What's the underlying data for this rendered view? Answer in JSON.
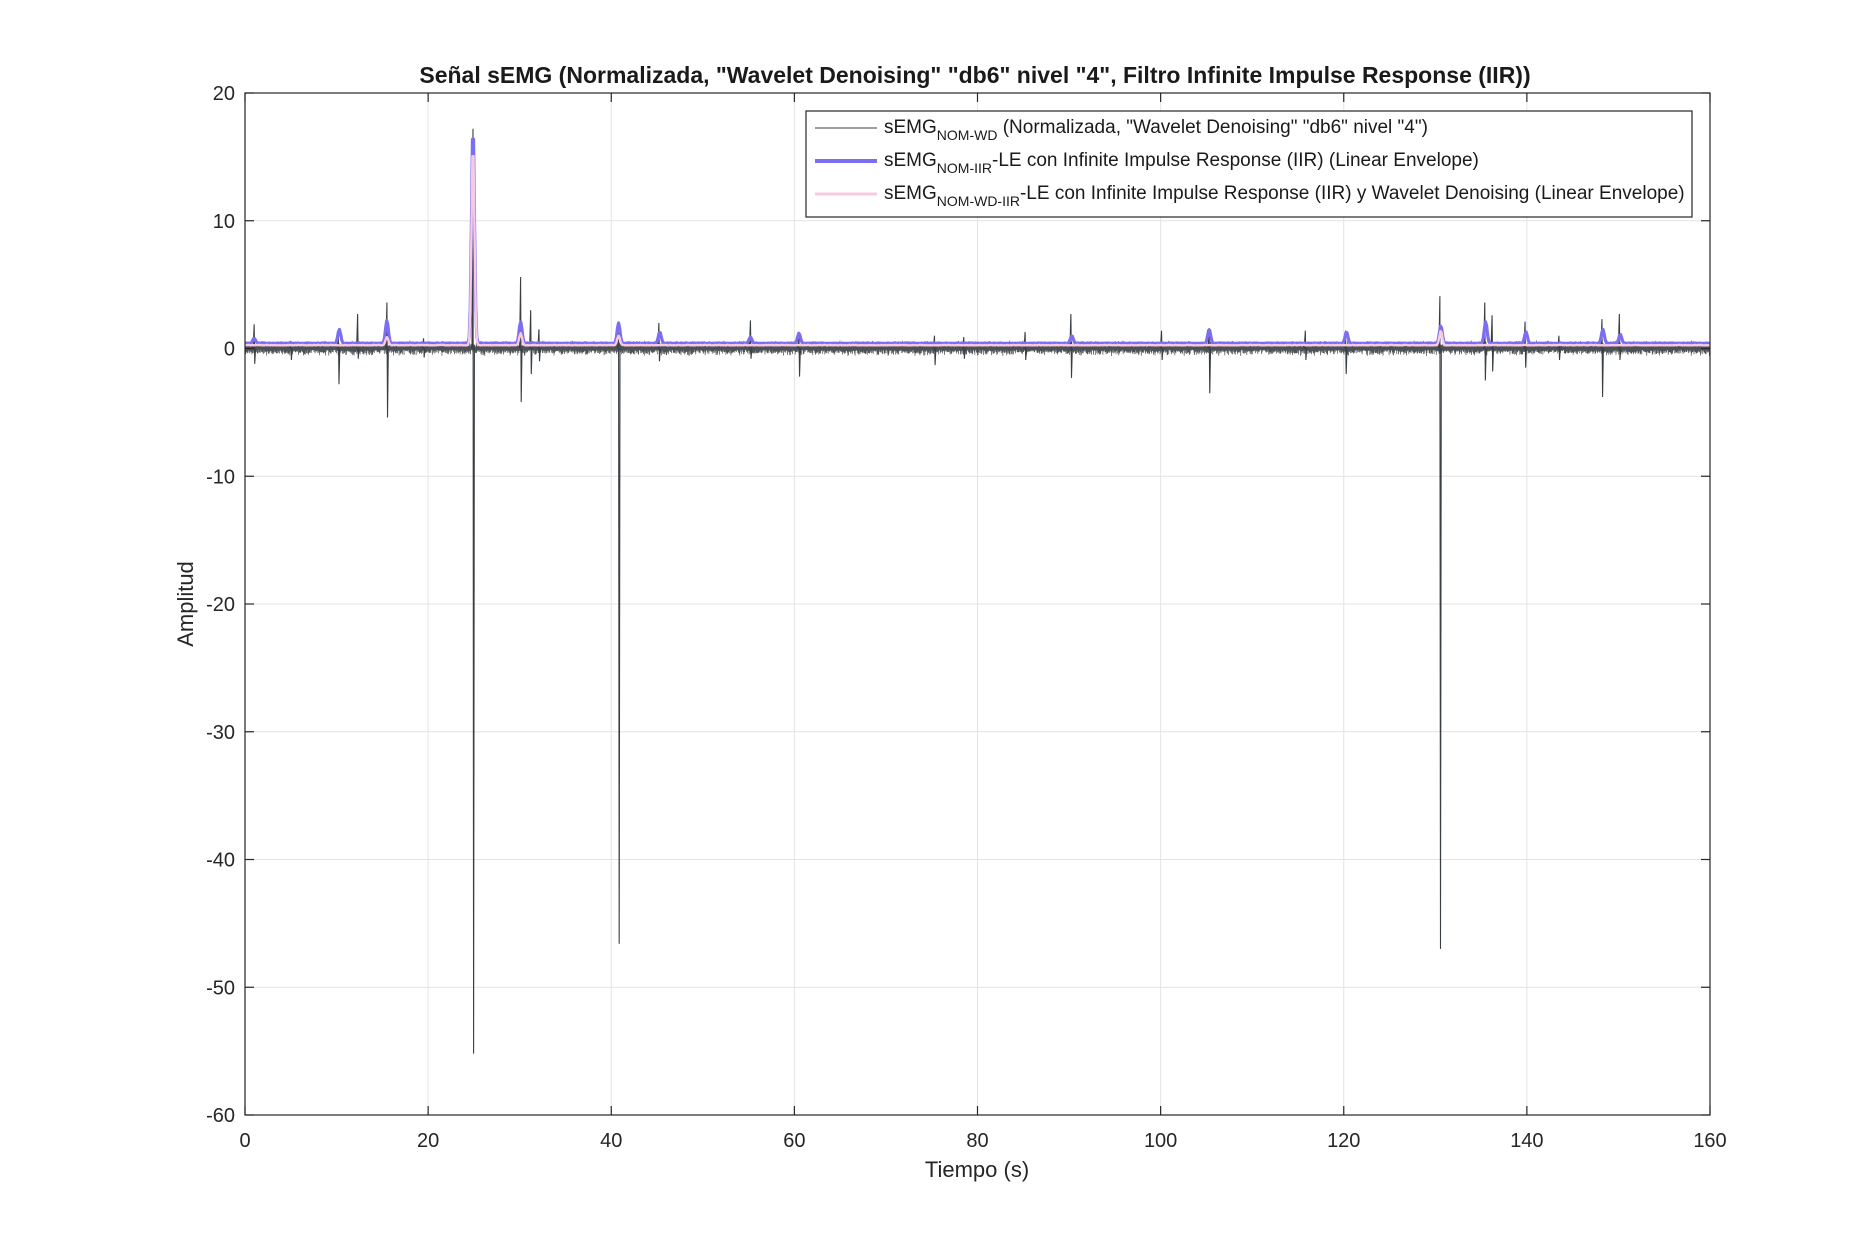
{
  "chart_data": {
    "type": "line",
    "title": "Señal sEMG (Normalizada, \"Wavelet Denoising\" \"db6\" nivel \"4\", Filtro Infinite Impulse Response (IIR))",
    "xlabel": "Tiempo (s)",
    "ylabel": "Amplitud",
    "xlim": [
      0,
      160
    ],
    "ylim": [
      -60,
      20
    ],
    "xticks": [
      0,
      20,
      40,
      60,
      80,
      100,
      120,
      140,
      160
    ],
    "xtick_labels": [
      "0",
      "20",
      "40",
      "60",
      "80",
      "100",
      "120",
      "140",
      "160"
    ],
    "yticks": [
      20,
      10,
      0,
      -10,
      -20,
      -30,
      -40,
      -50,
      -60
    ],
    "ytick_labels": [
      "20",
      "10",
      "0",
      "-10",
      "-20",
      "-30",
      "-40",
      "-50",
      "-60"
    ],
    "grid": true,
    "legend_position": "top-right",
    "colors": {
      "wd": "#3a3f44",
      "iir": "#7b6ef0",
      "wd_iir": "#f7c9e2",
      "grid": "#e4e4e4",
      "axis": "#262626"
    },
    "series": [
      {
        "key": "wd",
        "legend": {
          "base": "sEMG",
          "sub": "NOM-WD",
          "rest": " (Normalizada, \"Wavelet Denoising\" \"db6\" nivel \"4\")"
        },
        "baseline_range": [
          -0.5,
          0.5
        ],
        "spikes": [
          [
            1,
            1.9,
            -1.2
          ],
          [
            5,
            0.6,
            -0.9
          ],
          [
            10.2,
            1.2,
            -2.8
          ],
          [
            12.3,
            2.7,
            -0.8
          ],
          [
            15.5,
            3.6,
            -5.4
          ],
          [
            19.5,
            0.8,
            -0.7
          ],
          [
            24.9,
            17.2,
            -55.2
          ],
          [
            30.1,
            5.6,
            -4.2
          ],
          [
            31.2,
            3.0,
            -2.0
          ],
          [
            32.1,
            1.5,
            -1.0
          ],
          [
            40.8,
            2.0,
            -46.6
          ],
          [
            45.2,
            2.0,
            -1.0
          ],
          [
            55.2,
            2.2,
            -0.8
          ],
          [
            60.5,
            1.2,
            -2.2
          ],
          [
            75.3,
            1.0,
            -1.3
          ],
          [
            78.5,
            0.9,
            -0.8
          ],
          [
            85.2,
            1.3,
            -0.9
          ],
          [
            90.2,
            2.7,
            -2.3
          ],
          [
            100.1,
            1.4,
            -0.9
          ],
          [
            105.3,
            1.6,
            -3.5
          ],
          [
            115.8,
            1.4,
            -0.9
          ],
          [
            120.2,
            1.4,
            -2.0
          ],
          [
            130.5,
            4.1,
            -47.0
          ],
          [
            135.4,
            3.6,
            -2.5
          ],
          [
            136.2,
            2.6,
            -1.8
          ],
          [
            139.8,
            2.1,
            -1.5
          ],
          [
            143.5,
            1.0,
            -0.9
          ],
          [
            148.2,
            2.3,
            -3.8
          ],
          [
            150.1,
            2.7,
            -0.9
          ]
        ]
      },
      {
        "key": "iir",
        "legend": {
          "base": "sEMG",
          "sub": "NOM-IIR",
          "rest": "-LE con Infinite Impulse Response (IIR) (Linear Envelope)"
        },
        "baseline": 0.4,
        "peaks": [
          [
            1,
            0.8
          ],
          [
            10.3,
            1.5
          ],
          [
            15.5,
            2.2
          ],
          [
            24.9,
            17.6
          ],
          [
            30.1,
            2.1
          ],
          [
            40.8,
            2.0
          ],
          [
            45.3,
            1.3
          ],
          [
            55.2,
            0.9
          ],
          [
            60.5,
            1.2
          ],
          [
            90.3,
            1.0
          ],
          [
            105.3,
            1.5
          ],
          [
            120.3,
            1.3
          ],
          [
            130.6,
            1.8
          ],
          [
            135.5,
            2.1
          ],
          [
            139.9,
            1.3
          ],
          [
            148.3,
            1.5
          ],
          [
            150.2,
            1.1
          ]
        ]
      },
      {
        "key": "wd_iir",
        "legend": {
          "base": "sEMG",
          "sub": "NOM-WD-IIR",
          "rest": "-LE con Infinite Impulse Response (IIR) y Wavelet Denoising (Linear Envelope)"
        },
        "baseline": 0.25,
        "peaks": [
          [
            24.9,
            16.2
          ],
          [
            30.1,
            1.2
          ],
          [
            130.6,
            1.4
          ],
          [
            15.5,
            0.9
          ],
          [
            40.8,
            1.0
          ]
        ]
      }
    ]
  }
}
